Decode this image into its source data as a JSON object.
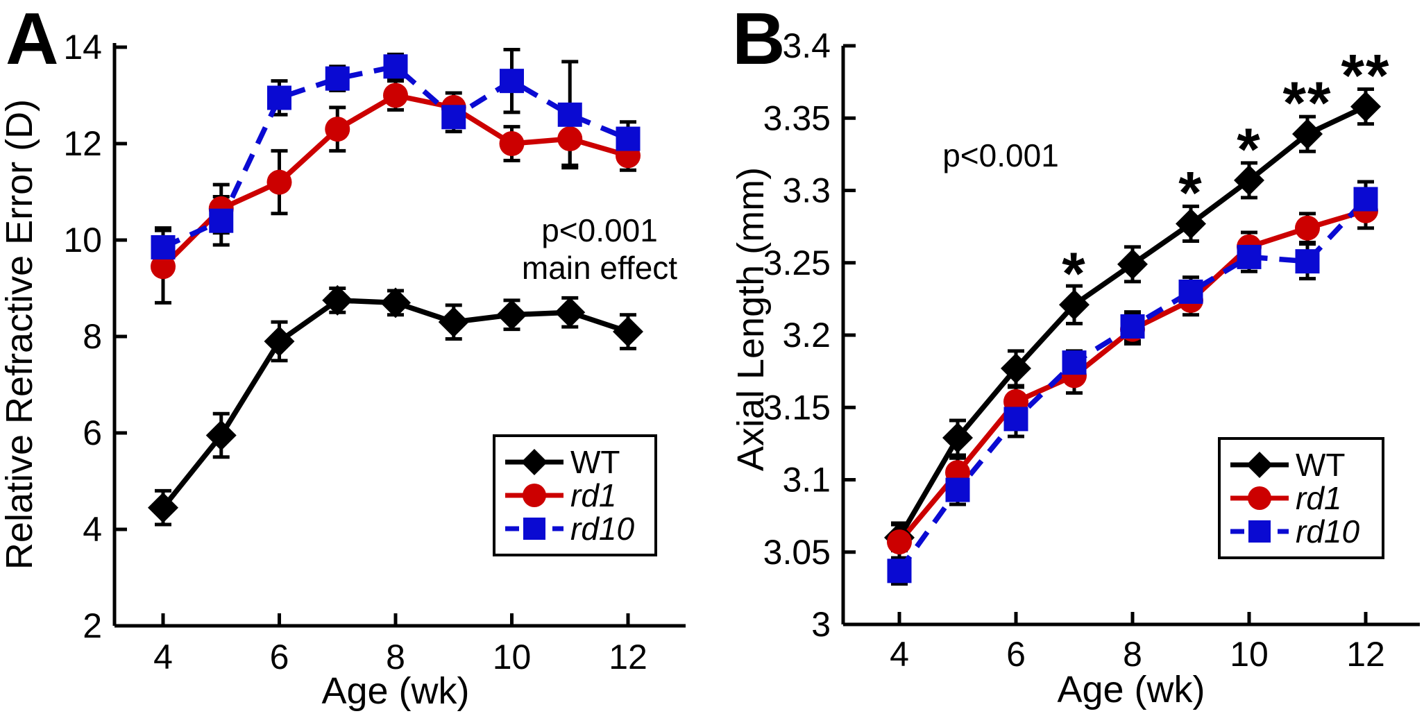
{
  "figure": {
    "background": "#ffffff",
    "panel_a_letter": "A",
    "panel_b_letter": "B"
  },
  "chart_data": [
    {
      "panel_label": "A",
      "type": "line",
      "title": "",
      "xlabel": "Age (wk)",
      "ylabel": "Relative Refractive Error (D)",
      "x": [
        4,
        5,
        6,
        7,
        8,
        9,
        10,
        11,
        12
      ],
      "xticks": [
        4,
        6,
        8,
        10,
        12
      ],
      "xtick_labels": [
        "4",
        "6",
        "8",
        "10",
        "12"
      ],
      "yticks": [
        2,
        4,
        6,
        8,
        10,
        12,
        14
      ],
      "ytick_labels": [
        "2",
        "4",
        "6",
        "8",
        "10",
        "12",
        "14"
      ],
      "ylim": [
        2,
        14
      ],
      "xlim": [
        3.2,
        12.8
      ],
      "grid": false,
      "legend_position": "lower right",
      "series": [
        {
          "name": "WT",
          "color": "#000000",
          "marker": "diamond",
          "line": "solid",
          "italic": false,
          "values": [
            4.45,
            5.95,
            7.9,
            8.75,
            8.7,
            8.3,
            8.45,
            8.5,
            8.1
          ],
          "errors": [
            0.35,
            0.45,
            0.4,
            0.25,
            0.25,
            0.35,
            0.3,
            0.3,
            0.35
          ]
        },
        {
          "name": "rd1",
          "color": "#cc0000",
          "marker": "circle",
          "line": "solid",
          "italic": true,
          "values": [
            9.45,
            10.65,
            11.2,
            12.3,
            13.0,
            12.75,
            12.0,
            12.1,
            11.75
          ],
          "errors": [
            0.75,
            0.5,
            0.65,
            0.45,
            0.3,
            0.3,
            0.35,
            0.55,
            0.3
          ]
        },
        {
          "name": "rd10",
          "color": "#0a0ad2",
          "marker": "square",
          "line": "dashed",
          "italic": true,
          "values": [
            9.85,
            10.4,
            12.95,
            13.35,
            13.6,
            12.55,
            13.3,
            12.6,
            12.1
          ],
          "errors": [
            0.4,
            0.5,
            0.35,
            0.25,
            0.25,
            0.3,
            0.65,
            1.1,
            0.35
          ]
        }
      ],
      "annotation": {
        "lines": [
          "p<0.001",
          "main effect"
        ]
      }
    },
    {
      "panel_label": "B",
      "type": "line",
      "title": "",
      "xlabel": "Age (wk)",
      "ylabel": "Axial Length (mm)",
      "x": [
        4,
        5,
        6,
        7,
        8,
        9,
        10,
        11,
        12
      ],
      "xticks": [
        4,
        6,
        8,
        10,
        12
      ],
      "xtick_labels": [
        "4",
        "6",
        "8",
        "10",
        "12"
      ],
      "yticks": [
        3,
        3.05,
        3.1,
        3.15,
        3.2,
        3.25,
        3.3,
        3.35,
        3.4
      ],
      "ytick_labels": [
        "3",
        "3.05",
        "3.1",
        "3.15",
        "3.2",
        "3.25",
        "3.3",
        "3.35",
        "3.4"
      ],
      "ylim": [
        3.0,
        3.4
      ],
      "xlim": [
        3.1,
        12.9
      ],
      "grid": false,
      "legend_position": "lower right",
      "series": [
        {
          "name": "WT",
          "color": "#000000",
          "marker": "diamond",
          "line": "solid",
          "italic": false,
          "values": [
            3.06,
            3.129,
            3.177,
            3.221,
            3.249,
            3.277,
            3.307,
            3.339,
            3.358
          ],
          "errors": [
            0.009,
            0.012,
            0.012,
            0.013,
            0.012,
            0.012,
            0.012,
            0.012,
            0.012
          ]
        },
        {
          "name": "rd1",
          "color": "#cc0000",
          "marker": "circle",
          "line": "solid",
          "italic": true,
          "values": [
            3.057,
            3.105,
            3.154,
            3.172,
            3.204,
            3.224,
            3.261,
            3.274,
            3.286
          ],
          "errors": [
            0.013,
            0.01,
            0.01,
            0.012,
            0.01,
            0.01,
            0.01,
            0.01,
            0.012
          ]
        },
        {
          "name": "rd10",
          "color": "#0a0ad2",
          "marker": "square",
          "line": "dashed",
          "italic": true,
          "values": [
            3.037,
            3.093,
            3.142,
            3.181,
            3.206,
            3.23,
            3.254,
            3.251,
            3.294
          ],
          "errors": [
            0.009,
            0.01,
            0.012,
            0.008,
            0.01,
            0.01,
            0.01,
            0.012,
            0.012
          ]
        }
      ],
      "significance": [
        {
          "x": 7,
          "label": "*"
        },
        {
          "x": 9,
          "label": "*"
        },
        {
          "x": 10,
          "label": "*"
        },
        {
          "x": 11,
          "label": "**"
        },
        {
          "x": 12,
          "label": "**"
        }
      ],
      "ghost_annotation": {
        "text": "p<0.001",
        "color": "#f7f7f7"
      }
    }
  ]
}
